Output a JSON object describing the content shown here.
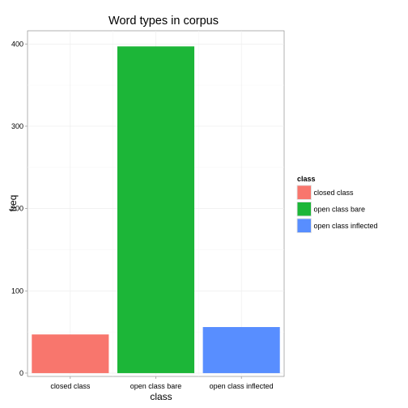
{
  "chart_data": {
    "type": "bar",
    "title": "Word types in corpus",
    "xlabel": "class",
    "ylabel": "freq",
    "categories": [
      "closed class",
      "open class bare",
      "open class inflected"
    ],
    "values": [
      47,
      397,
      56
    ],
    "colors": [
      "#F8766D",
      "#1CB638",
      "#588EFF"
    ],
    "ylim": [
      -4,
      416
    ],
    "yticks": [
      0,
      100,
      200,
      300,
      400
    ],
    "grid": true,
    "legend": {
      "title": "class",
      "position": "right",
      "entries": [
        "closed class",
        "open class bare",
        "open class inflected"
      ]
    }
  }
}
